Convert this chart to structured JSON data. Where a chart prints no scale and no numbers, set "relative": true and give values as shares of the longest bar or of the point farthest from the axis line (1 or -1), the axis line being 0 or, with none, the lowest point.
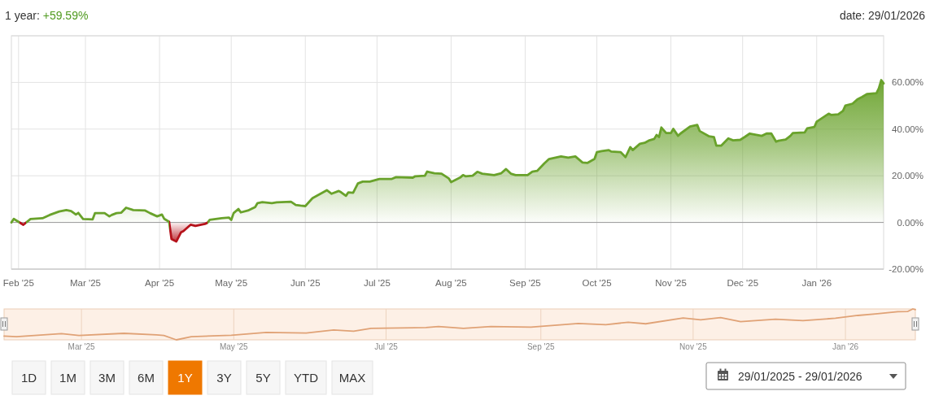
{
  "chart_data": [
    {
      "type": "area",
      "title": "1 year: +59.59%",
      "annotations": [
        "date: 29/01/2026"
      ],
      "x": [
        "2025-01-29",
        "2025-01-30",
        "2025-02-03",
        "2025-02-06",
        "2025-02-11",
        "2025-02-14",
        "2025-02-18",
        "2025-02-21",
        "2025-02-23",
        "2025-02-25",
        "2025-02-26",
        "2025-02-28",
        "2025-03-04",
        "2025-03-05",
        "2025-03-09",
        "2025-03-11",
        "2025-03-12",
        "2025-03-14",
        "2025-03-16",
        "2025-03-18",
        "2025-03-21",
        "2025-03-26",
        "2025-03-28",
        "2025-03-31",
        "2025-04-02",
        "2025-04-03",
        "2025-04-05",
        "2025-04-06",
        "2025-04-08",
        "2025-04-10",
        "2025-04-11",
        "2025-04-13",
        "2025-04-14",
        "2025-04-16",
        "2025-04-20",
        "2025-04-21",
        "2025-04-22",
        "2025-04-27",
        "2025-04-30",
        "2025-05-01",
        "2025-05-02",
        "2025-05-04",
        "2025-05-05",
        "2025-05-08",
        "2025-05-11",
        "2025-05-12",
        "2025-05-14",
        "2025-05-18",
        "2025-05-20",
        "2025-05-26",
        "2025-05-28",
        "2025-05-30",
        "2025-06-01",
        "2025-06-04",
        "2025-06-10",
        "2025-06-12",
        "2025-06-15",
        "2025-06-16",
        "2025-06-18",
        "2025-06-19",
        "2025-06-21",
        "2025-06-23",
        "2025-06-25",
        "2025-06-28",
        "2025-07-02",
        "2025-07-07",
        "2025-07-09",
        "2025-07-16",
        "2025-07-17",
        "2025-07-21",
        "2025-07-22",
        "2025-07-25",
        "2025-07-28",
        "2025-07-31",
        "2025-08-01",
        "2025-08-05",
        "2025-08-06",
        "2025-08-07",
        "2025-08-10",
        "2025-08-12",
        "2025-08-14",
        "2025-08-19",
        "2025-08-22",
        "2025-08-24",
        "2025-08-26",
        "2025-08-28",
        "2025-09-02",
        "2025-09-04",
        "2025-09-06",
        "2025-09-09",
        "2025-09-11",
        "2025-09-16",
        "2025-09-19",
        "2025-09-22",
        "2025-09-25",
        "2025-09-27",
        "2025-09-30",
        "2025-10-01",
        "2025-10-03",
        "2025-10-06",
        "2025-10-07",
        "2025-10-11",
        "2025-10-13",
        "2025-10-15",
        "2025-10-16",
        "2025-10-19",
        "2025-10-21",
        "2025-10-23",
        "2025-10-25",
        "2025-10-26",
        "2025-10-27",
        "2025-10-28",
        "2025-10-30",
        "2025-11-01",
        "2025-11-02",
        "2025-11-04",
        "2025-11-05",
        "2025-11-09",
        "2025-11-12",
        "2025-11-13",
        "2025-11-17",
        "2025-11-19",
        "2025-11-20",
        "2025-11-22",
        "2025-11-25",
        "2025-11-27",
        "2025-11-30",
        "2025-12-02",
        "2025-12-04",
        "2025-12-09",
        "2025-12-11",
        "2025-12-13",
        "2025-12-15",
        "2025-12-16",
        "2025-12-19",
        "2025-12-21",
        "2025-12-22",
        "2025-12-27",
        "2025-12-28",
        "2025-12-31",
        "2026-01-01",
        "2026-01-06",
        "2026-01-07",
        "2026-01-10",
        "2026-01-12",
        "2026-01-13",
        "2026-01-16",
        "2026-01-18",
        "2026-01-20",
        "2026-01-22",
        "2026-01-26",
        "2026-01-27",
        "2026-01-28",
        "2026-01-29"
      ],
      "values": [
        0,
        1.5,
        -1.0,
        1.5,
        1.8,
        3.2,
        4.7,
        5.3,
        4.9,
        3.4,
        4.1,
        1.5,
        1.3,
        4.0,
        4.0,
        2.6,
        3.2,
        4.0,
        4.2,
        6.3,
        5.3,
        5.1,
        4.0,
        2.6,
        3.4,
        1.5,
        0.3,
        -7.1,
        -8.2,
        -4.2,
        -3.7,
        -1.9,
        -1.0,
        -1.5,
        -0.6,
        -0.2,
        1.1,
        1.8,
        2.1,
        1.1,
        4.0,
        5.8,
        4.3,
        5.1,
        6.6,
        8.3,
        8.7,
        8.3,
        8.6,
        8.9,
        7.5,
        7.2,
        7.0,
        10.4,
        13.8,
        12.3,
        13.5,
        12.9,
        11.4,
        12.9,
        12.7,
        16.7,
        17.5,
        17.5,
        18.6,
        18.6,
        19.4,
        19.2,
        19.8,
        20.0,
        21.8,
        21.1,
        20.9,
        18.9,
        17.3,
        19.4,
        20.3,
        19.8,
        20.0,
        21.7,
        20.9,
        20.3,
        21.1,
        22.9,
        20.9,
        20.3,
        20.3,
        21.8,
        22.1,
        25.3,
        27.2,
        28.3,
        27.8,
        28.3,
        25.7,
        25.5,
        27.2,
        30.1,
        30.6,
        31.0,
        30.4,
        30.1,
        28.0,
        32.3,
        31.0,
        33.7,
        34.1,
        35.2,
        35.8,
        37.5,
        36.6,
        40.7,
        38.3,
        38.3,
        40.1,
        37.1,
        38.1,
        41.1,
        41.8,
        39.2,
        36.9,
        36.6,
        32.9,
        32.9,
        36.0,
        35.2,
        35.4,
        36.7,
        38.1,
        37.1,
        38.1,
        38.1,
        34.6,
        35.0,
        35.5,
        37.1,
        38.3,
        38.6,
        40.3,
        40.9,
        43.2,
        46.6,
        46.1,
        46.3,
        47.8,
        50.1,
        50.9,
        52.7,
        53.8,
        55.0,
        55.4,
        57.5,
        61.0,
        59.59
      ],
      "colors": [
        "#69a22b",
        "#69a22b",
        "#b5121b",
        "#69a22b",
        "#69a22b",
        "#69a22b",
        "#69a22b",
        "#69a22b",
        "#69a22b",
        "#69a22b",
        "#69a22b",
        "#69a22b",
        "#69a22b",
        "#69a22b",
        "#69a22b",
        "#69a22b",
        "#69a22b",
        "#69a22b",
        "#69a22b",
        "#69a22b",
        "#69a22b",
        "#69a22b",
        "#69a22b",
        "#69a22b",
        "#69a22b",
        "#69a22b",
        "#69a22b",
        "#b5121b",
        "#b5121b",
        "#b5121b",
        "#b5121b",
        "#b5121b",
        "#b5121b",
        "#b5121b",
        "#b5121b",
        "#b5121b",
        "#69a22b",
        "#69a22b",
        "#69a22b",
        "#69a22b",
        "#69a22b",
        "#69a22b",
        "#69a22b",
        "#69a22b",
        "#69a22b",
        "#69a22b",
        "#69a22b",
        "#69a22b",
        "#69a22b",
        "#69a22b",
        "#69a22b",
        "#69a22b",
        "#69a22b",
        "#69a22b",
        "#69a22b",
        "#69a22b",
        "#69a22b",
        "#69a22b",
        "#69a22b",
        "#69a22b",
        "#69a22b",
        "#69a22b",
        "#69a22b",
        "#69a22b",
        "#69a22b",
        "#69a22b",
        "#69a22b",
        "#69a22b",
        "#69a22b",
        "#69a22b",
        "#69a22b",
        "#69a22b",
        "#69a22b",
        "#69a22b",
        "#69a22b",
        "#69a22b",
        "#69a22b",
        "#69a22b",
        "#69a22b",
        "#69a22b",
        "#69a22b",
        "#69a22b",
        "#69a22b",
        "#69a22b",
        "#69a22b",
        "#69a22b",
        "#69a22b",
        "#69a22b",
        "#69a22b",
        "#69a22b",
        "#69a22b",
        "#69a22b",
        "#69a22b",
        "#69a22b",
        "#69a22b",
        "#69a22b",
        "#69a22b",
        "#69a22b",
        "#69a22b",
        "#69a22b",
        "#69a22b",
        "#69a22b",
        "#69a22b",
        "#69a22b",
        "#69a22b",
        "#69a22b",
        "#69a22b",
        "#69a22b",
        "#69a22b",
        "#69a22b",
        "#69a22b",
        "#69a22b",
        "#69a22b",
        "#69a22b",
        "#69a22b",
        "#69a22b",
        "#69a22b",
        "#69a22b",
        "#69a22b",
        "#69a22b",
        "#69a22b",
        "#69a22b",
        "#69a22b",
        "#69a22b",
        "#69a22b",
        "#69a22b",
        "#69a22b",
        "#69a22b",
        "#69a22b",
        "#69a22b",
        "#69a22b",
        "#69a22b",
        "#69a22b",
        "#69a22b",
        "#69a22b",
        "#69a22b",
        "#69a22b",
        "#69a22b",
        "#69a22b",
        "#69a22b",
        "#69a22b",
        "#69a22b",
        "#69a22b",
        "#69a22b",
        "#69a22b",
        "#69a22b",
        "#69a22b",
        "#69a22b",
        "#69a22b",
        "#69a22b",
        "#69a22b",
        "#69a22b",
        "#69a22b",
        "#69a22b"
      ],
      "xlim": [
        "2025-01-29",
        "2026-01-29"
      ],
      "xticks": [
        {
          "value": "2025-02-01",
          "label": "Feb '25"
        },
        {
          "value": "2025-03-01",
          "label": "Mar '25"
        },
        {
          "value": "2025-04-01",
          "label": "Apr '25"
        },
        {
          "value": "2025-05-01",
          "label": "May '25"
        },
        {
          "value": "2025-06-01",
          "label": "Jun '25"
        },
        {
          "value": "2025-07-01",
          "label": "Jul '25"
        },
        {
          "value": "2025-08-01",
          "label": "Aug '25"
        },
        {
          "value": "2025-09-01",
          "label": "Sep '25"
        },
        {
          "value": "2025-10-01",
          "label": "Oct '25"
        },
        {
          "value": "2025-11-01",
          "label": "Nov '25"
        },
        {
          "value": "2025-12-01",
          "label": "Dec '25"
        },
        {
          "value": "2026-01-01",
          "label": "Jan '26"
        }
      ],
      "ylim": [
        -20,
        80
      ],
      "yticks": [
        {
          "value": -20,
          "label": "-20.00%"
        },
        {
          "value": 0,
          "label": "0.00%"
        },
        {
          "value": 20,
          "label": "20.00%"
        },
        {
          "value": 40,
          "label": "40.00%"
        },
        {
          "value": 60,
          "label": "60.00%"
        },
        {
          "value": 80,
          "label": null
        }
      ],
      "grid": true,
      "ref_lines": [
        {
          "axis": "y",
          "value": 0,
          "color": "#9a9a9a"
        }
      ]
    },
    {
      "type": "line",
      "relative": true,
      "color": "#e0a276",
      "x": [
        "2025-01-29",
        "2025-02-03",
        "2025-02-21",
        "2025-02-28",
        "2025-03-18",
        "2025-03-31",
        "2025-04-03",
        "2025-04-08",
        "2025-04-14",
        "2025-04-30",
        "2025-05-14",
        "2025-05-30",
        "2025-06-10",
        "2025-06-18",
        "2025-06-25",
        "2025-07-17",
        "2025-07-22",
        "2025-08-01",
        "2025-08-12",
        "2025-08-28",
        "2025-09-16",
        "2025-09-27",
        "2025-10-06",
        "2025-10-13",
        "2025-10-28",
        "2025-11-04",
        "2025-11-12",
        "2025-11-20",
        "2025-12-04",
        "2025-12-15",
        "2025-12-28",
        "2026-01-06",
        "2026-01-13",
        "2026-01-22",
        "2026-01-26",
        "2026-01-28",
        "2026-01-29"
      ],
      "values": [
        0.12,
        0.1,
        0.2,
        0.14,
        0.21,
        0.16,
        0.14,
        0,
        0.1,
        0.15,
        0.24,
        0.22,
        0.32,
        0.28,
        0.37,
        0.4,
        0.43,
        0.37,
        0.43,
        0.41,
        0.53,
        0.49,
        0.57,
        0.52,
        0.71,
        0.65,
        0.72,
        0.59,
        0.67,
        0.62,
        0.7,
        0.79,
        0.84,
        0.91,
        0.92,
        1,
        0.98
      ],
      "xlim": [
        "2025-01-29",
        "2026-01-29"
      ],
      "xticks": [
        {
          "value": "2025-03-01",
          "label": "Mar '25"
        },
        {
          "value": "2025-05-01",
          "label": "May '25"
        },
        {
          "value": "2025-07-01",
          "label": "Jul '25"
        },
        {
          "value": "2025-09-01",
          "label": "Sep '25"
        },
        {
          "value": "2025-11-01",
          "label": "Nov '25"
        },
        {
          "value": "2026-01-01",
          "label": "Jan '26"
        }
      ],
      "grid": "x",
      "annotations": [
        "1D",
        "1M",
        "3M",
        "6M",
        "1Y",
        "3Y",
        "5Y",
        "YTD",
        "MAX",
        "29/01/2025 - 29/01/2026"
      ]
    }
  ]
}
